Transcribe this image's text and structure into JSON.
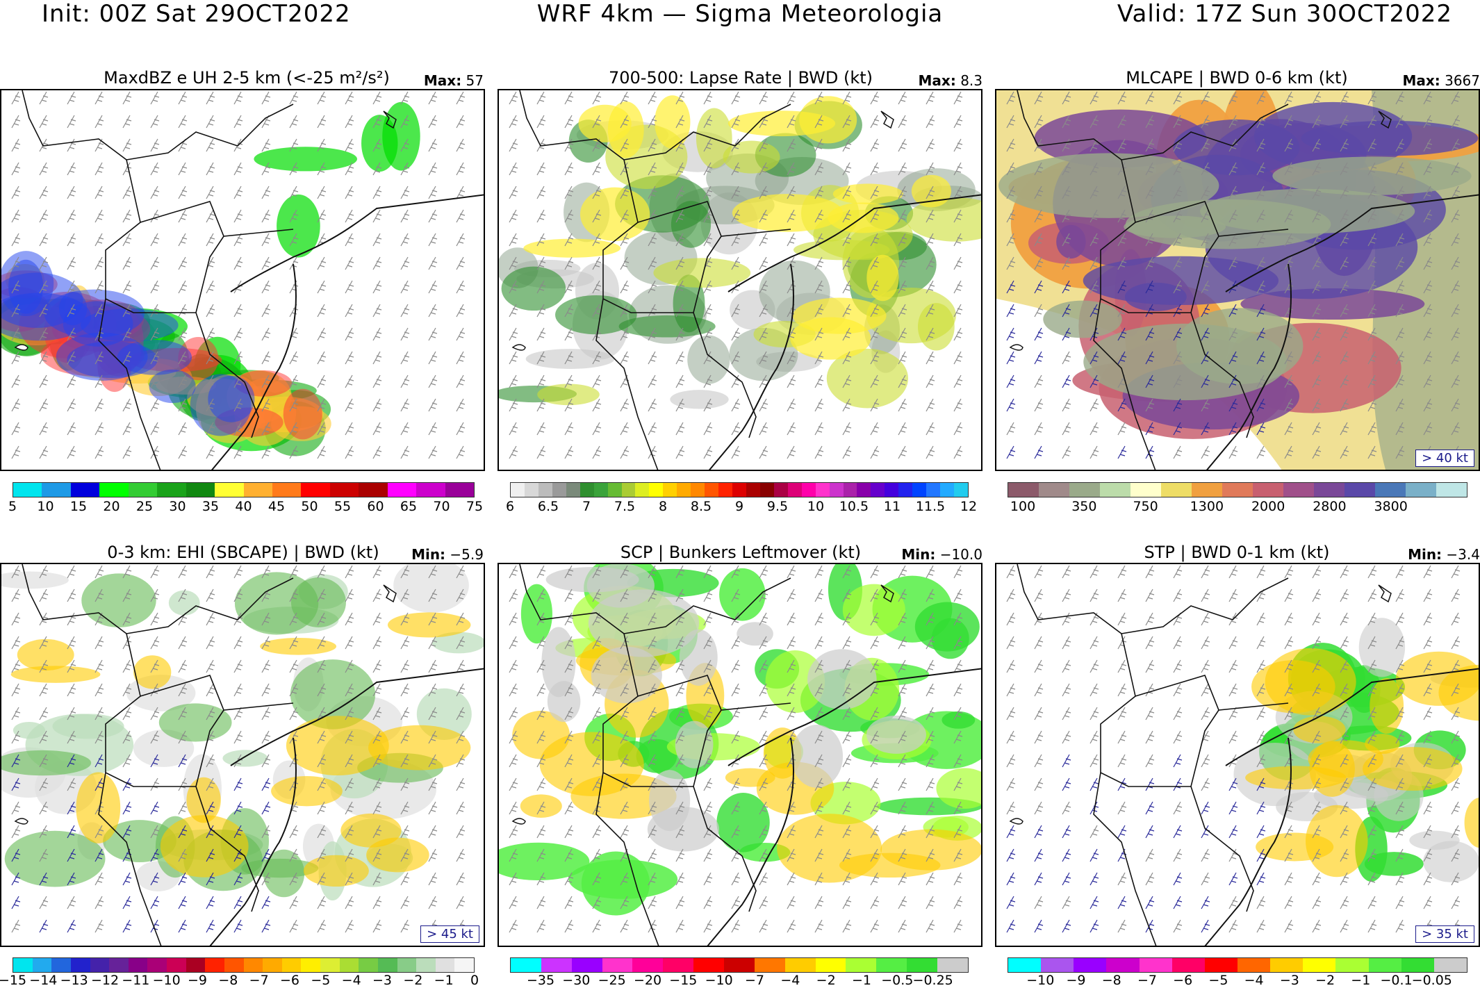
{
  "header": {
    "init": "Init: 00Z Sat 29OCT2022",
    "model": "WRF 4km — Sigma Meteorologia",
    "valid": "Valid: 17Z Sun 30OCT2022"
  },
  "panels": [
    {
      "title": "MaxdBZ e UH 2-5 km (<-25 m²/s²)",
      "stat_label": "Max:",
      "stat_value": "57",
      "kt_box": "",
      "palette": "radar",
      "colorbar": [
        "#00e5ee",
        "#1e9ae6",
        "#0000dd",
        "#00ff00",
        "#33cc33",
        "#1aa31a",
        "#118811",
        "#ffff33",
        "#ffb030",
        "#ff7a1a",
        "#ff0000",
        "#cc0000",
        "#aa0000",
        "#ff00ff",
        "#cc00cc",
        "#990099"
      ],
      "labels": [
        "5",
        "10",
        "15",
        "20",
        "25",
        "30",
        "35",
        "40",
        "45",
        "50",
        "55",
        "60",
        "65",
        "70",
        "75"
      ]
    },
    {
      "title": "700-500: Lapse Rate | BWD (kt)",
      "stat_label": "Max:",
      "stat_value": "8.3",
      "kt_box": "",
      "palette": "lapse",
      "colorbar": [
        "#f0f0f0",
        "#d8d8d8",
        "#bcbcbc",
        "#9a9a9a",
        "#7a8a7a",
        "#2f8f2f",
        "#3aa33a",
        "#66bb33",
        "#aacc33",
        "#ddee22",
        "#ffff00",
        "#ffd000",
        "#ffaa00",
        "#ff8800",
        "#ff5500",
        "#ff2200",
        "#dd0000",
        "#aa0000",
        "#880000",
        "#aa0044",
        "#dd0077",
        "#ff00aa",
        "#ff33cc",
        "#cc33cc",
        "#aa22aa",
        "#8800aa",
        "#6600cc",
        "#4400dd",
        "#2222ee",
        "#0044ff",
        "#2277ff",
        "#22aaff",
        "#22ccee"
      ],
      "labels": [
        "6",
        "6.5",
        "7",
        "7.5",
        "8",
        "8.5",
        "9",
        "9.5",
        "10",
        "10.5",
        "11",
        "11.5",
        "12"
      ]
    },
    {
      "title": "MLCAPE | BWD 0-6 km (kt)",
      "stat_label": "Max:",
      "stat_value": "3667",
      "kt_box": "> 40 kt",
      "palette": "cape",
      "colorbar": [
        "#8c5a6a",
        "#a08a8a",
        "#9aaa8a",
        "#bcdcaa",
        "#ffffcc",
        "#eedd66",
        "#f0a040",
        "#e07a5a",
        "#c86070",
        "#a0508a",
        "#7a4898",
        "#5a48a8",
        "#4a78b8",
        "#7ab0c8",
        "#bfe6e6"
      ],
      "labels": [
        "100",
        "350",
        "750",
        "1300",
        "2000",
        "2800",
        "3800"
      ]
    },
    {
      "title": "0-3 km: EHI (SBCAPE) | BWD (kt)",
      "stat_label": "Min:",
      "stat_value": "−5.9",
      "kt_box": "> 45 kt",
      "palette": "ehi",
      "colorbar": [
        "#00e5ee",
        "#22aaee",
        "#2266dd",
        "#2222cc",
        "#4422aa",
        "#662299",
        "#880088",
        "#aa0077",
        "#cc0055",
        "#aa0022",
        "#ff2200",
        "#ff5500",
        "#ff8800",
        "#ffaa00",
        "#ffcc00",
        "#ffee00",
        "#ddee33",
        "#aadd33",
        "#77cc44",
        "#55bb55",
        "#88cc88",
        "#bbddbb",
        "#e0e0e0",
        "#f5f5f5"
      ],
      "labels": [
        "−15",
        "−14",
        "−13",
        "−12",
        "−11",
        "−10",
        "−9",
        "−8",
        "−7",
        "−6",
        "−5",
        "−4",
        "−3",
        "−2",
        "−1",
        "0"
      ]
    },
    {
      "title": "SCP | Bunkers Leftmover (kt)",
      "stat_label": "Min:",
      "stat_value": "−10.0",
      "kt_box": "",
      "palette": "scp",
      "colorbar": [
        "#00ffff",
        "#cc33ff",
        "#9900ff",
        "#ff33cc",
        "#ff0099",
        "#ff0066",
        "#ff0000",
        "#cc0000",
        "#ff7700",
        "#ffcc00",
        "#ffff00",
        "#aaff33",
        "#55ee44",
        "#33dd33",
        "#cccccc"
      ],
      "labels": [
        "−35",
        "−30",
        "−25",
        "−20",
        "−15",
        "−10",
        "−7",
        "−4",
        "−2",
        "−1",
        "−0.5",
        "−0.25"
      ]
    },
    {
      "title": "STP | BWD 0-1 km (kt)",
      "stat_label": "Min:",
      "stat_value": "−3.4",
      "kt_box": "> 35 kt",
      "palette": "stp",
      "colorbar": [
        "#00ffff",
        "#aa55ee",
        "#9900ff",
        "#cc00cc",
        "#ff33cc",
        "#ff0066",
        "#ff0000",
        "#ff6600",
        "#ffcc00",
        "#ffff00",
        "#aaff33",
        "#55ee44",
        "#33dd33",
        "#cccccc"
      ],
      "labels": [
        "−10",
        "−9",
        "−8",
        "−7",
        "−6",
        "−5",
        "−4",
        "−3",
        "−2",
        "−1",
        "−0.1",
        "−0.05"
      ]
    }
  ]
}
